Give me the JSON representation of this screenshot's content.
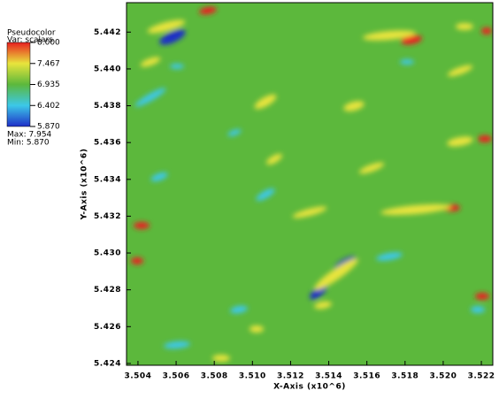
{
  "chart_data": {
    "type": "pseudocolor",
    "legend_title": "Pseudocolor",
    "legend_var": "Var: scalars",
    "max_label": "Max: 7.954",
    "min_label": "Min: 5.870",
    "xlabel": "X-Axis (x10^6)",
    "ylabel": "Y-Axis (x10^6)",
    "xlim": [
      3.5034,
      3.5226
    ],
    "ylim": [
      5.4239,
      5.4436
    ],
    "xticks": [
      3.504,
      3.506,
      3.508,
      {
        "value": 3.51,
        "label": "3.510"
      },
      3.512,
      3.514,
      3.516,
      3.518,
      {
        "value": 3.52,
        "label": "3.520"
      },
      3.522
    ],
    "yticks": [
      5.424,
      5.426,
      5.428,
      {
        "value": 5.43,
        "label": "5.430"
      },
      5.432,
      5.434,
      5.436,
      5.438,
      {
        "value": 5.44,
        "label": "5.440"
      },
      5.442
    ],
    "colorbar": {
      "lim": [
        5.87,
        8
      ],
      "ticks": [
        {
          "value": 8,
          "label": "8.000"
        },
        7.467,
        6.935,
        6.402,
        {
          "value": 5.87,
          "label": "5.870"
        }
      ],
      "colors": [
        "#1f2fc8",
        "#3cc8e8",
        "#5cb83c",
        "#e8e43c",
        "#e82020"
      ]
    }
  }
}
